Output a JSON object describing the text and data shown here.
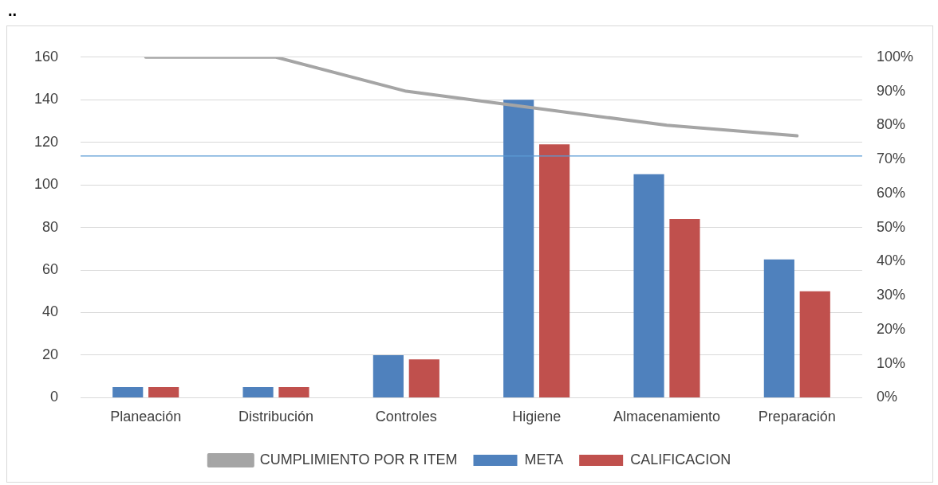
{
  "chart_data": {
    "type": "bar",
    "categories": [
      "Planeación",
      "Distribución",
      "Controles",
      "Higiene",
      "Almacenamiento",
      "Preparación"
    ],
    "series": [
      {
        "name": "META",
        "color": "#4f81bd",
        "values": [
          5,
          5,
          20,
          140,
          105,
          65
        ]
      },
      {
        "name": "CALIFICACION",
        "color": "#c0504d",
        "values": [
          5,
          5,
          18,
          119,
          84,
          50
        ]
      },
      {
        "name": "CUMPLIMIENTO POR R ITEM",
        "type": "line",
        "axis": "y2",
        "color": "#a5a5a5",
        "values": [
          100,
          100,
          90,
          85,
          80,
          76.9
        ]
      }
    ],
    "ylim": [
      0,
      160
    ],
    "yticks": [
      0,
      20,
      40,
      60,
      80,
      100,
      120,
      140,
      160
    ],
    "y2lim": [
      0,
      100
    ],
    "y2ticks": [
      {
        "value": 0,
        "label": "0%"
      },
      {
        "value": 10,
        "label": "10%"
      },
      {
        "value": 20,
        "label": "20%"
      },
      {
        "value": 30,
        "label": "30%"
      },
      {
        "value": 40,
        "label": "40%"
      },
      {
        "value": 50,
        "label": "50%"
      },
      {
        "value": 60,
        "label": "60%"
      },
      {
        "value": 70,
        "label": "70%"
      },
      {
        "value": 80,
        "label": "80%"
      },
      {
        "value": 90,
        "label": "90%"
      },
      {
        "value": 100,
        "label": "100%"
      }
    ],
    "ref_lines": [
      {
        "axis": "y2",
        "value": 71,
        "color": "#5b9bd5"
      }
    ],
    "annotations": [
      ".."
    ],
    "grid": "y",
    "legend": "bottom",
    "marker": "none"
  }
}
